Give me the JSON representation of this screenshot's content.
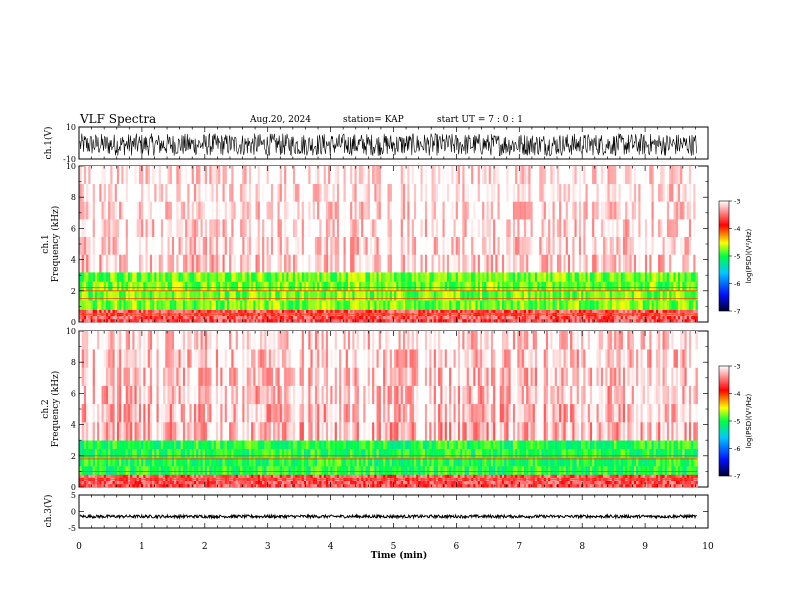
{
  "header": {
    "title": "VLF Spectra",
    "date": "Aug.20, 2024",
    "station": "station= KAP",
    "start": "start  UT =  7 : 0  : 1"
  },
  "colorbar": {
    "label": "log(PSD)(V²/Hz)",
    "ticks": [
      "-3",
      "-4",
      "-5",
      "-6",
      "-7"
    ]
  },
  "chart_data": [
    {
      "type": "line",
      "name": "ch1-waveform",
      "ylabel": "ch.1(V)",
      "ylim": [
        -10,
        10
      ],
      "yticks": [
        "10",
        "-10"
      ],
      "description_values": {
        "mean": -1,
        "range": [
          -7,
          7
        ]
      }
    },
    {
      "type": "heatmap",
      "name": "ch1-spectrogram",
      "ylabel": "ch.1\nFrequency (kHz)",
      "ylim": [
        0,
        10
      ],
      "yticks": [
        "0",
        "2",
        "4",
        "6",
        "8",
        "10"
      ],
      "colorscale_range": [
        -7,
        -3
      ],
      "bands": [
        {
          "f_lo": 0,
          "f_hi": 0.8,
          "level": -3.6
        },
        {
          "f_lo": 0.8,
          "f_hi": 3.2,
          "level": -4.8
        },
        {
          "f_lo": 3.2,
          "f_hi": 10,
          "level": -3.2
        }
      ],
      "lines_khz": [
        2.0,
        2.2,
        1.5,
        0.5
      ]
    },
    {
      "type": "heatmap",
      "name": "ch2-spectrogram",
      "ylabel": "ch.2\nFrequency (kHz)",
      "ylim": [
        0,
        10
      ],
      "yticks": [
        "0",
        "2",
        "4",
        "6",
        "8",
        "10"
      ],
      "colorscale_range": [
        -7,
        -3
      ],
      "bands": [
        {
          "f_lo": 0,
          "f_hi": 0.8,
          "level": -3.6
        },
        {
          "f_lo": 0.8,
          "f_hi": 3.0,
          "level": -5.0
        },
        {
          "f_lo": 3.0,
          "f_hi": 10,
          "level": -3.3
        }
      ],
      "lines_khz": [
        1.8,
        2.0,
        1.0,
        0.5
      ]
    },
    {
      "type": "line",
      "name": "ch3-waveform",
      "ylabel": "ch.3(V)",
      "ylim": [
        -5,
        5
      ],
      "yticks": [
        "5",
        "0",
        "-5"
      ],
      "description_values": {
        "mean": -1.5,
        "range": [
          -2,
          -1
        ]
      }
    }
  ],
  "xaxis": {
    "xlabel": "Time (min)",
    "xlim": [
      0,
      10
    ],
    "ticks": [
      "0",
      "1",
      "2",
      "3",
      "4",
      "5",
      "6",
      "7",
      "8",
      "9",
      "10"
    ],
    "data_end": 9.83
  }
}
